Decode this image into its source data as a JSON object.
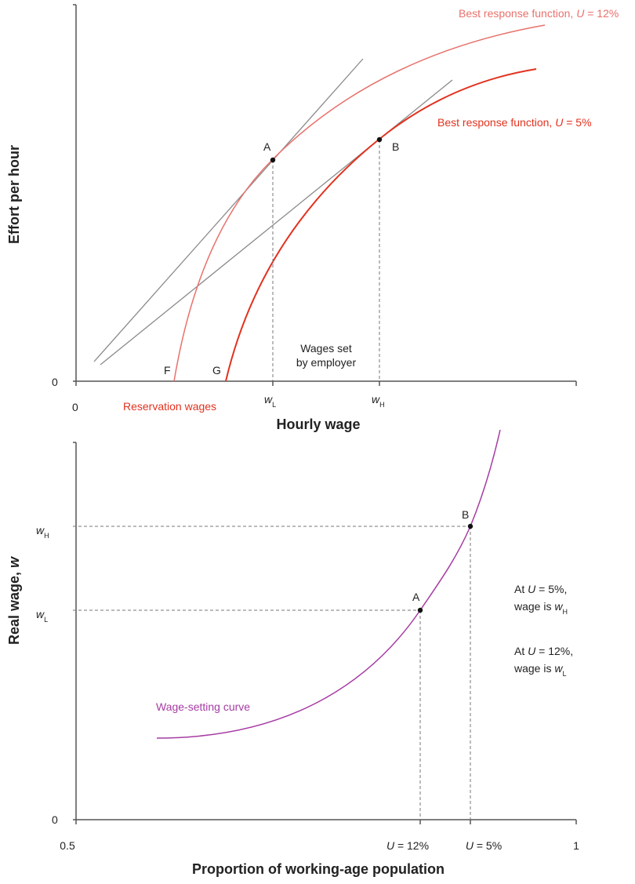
{
  "colors": {
    "u12": "#e8716c",
    "u5": "#e2321f",
    "wage_setting": "#a63ca4",
    "tangent": "#8a8a8a",
    "axis": "#555555"
  },
  "top_chart": {
    "y_label": "Effort per hour",
    "x_label": "Hourly wage",
    "y_origin": "0",
    "x_origin": "0",
    "curve_u12_label": {
      "prefix": "Best response function, ",
      "var": "U",
      "suffix": " = 12%"
    },
    "curve_u5_label": {
      "prefix": "Best response function, ",
      "var": "U",
      "suffix": " = 5%"
    },
    "point_a": "A",
    "point_b": "B",
    "point_f": "F",
    "point_g": "G",
    "reservation_label": "Reservation wages",
    "wages_set_line1": "Wages set",
    "wages_set_line2": "by employer",
    "wL": {
      "w": "w",
      "sub": "L"
    },
    "wH": {
      "w": "w",
      "sub": "H"
    }
  },
  "bottom_chart": {
    "y_label_prefix": "Real wage, ",
    "y_label_var": "w",
    "x_label": "Proportion of working-age population",
    "y_origin": "0",
    "x_min": "0.5",
    "x_max": "1",
    "tick_u12": {
      "var": "U",
      "suffix": " = 12%"
    },
    "tick_u5": {
      "var": "U",
      "suffix": " = 5%"
    },
    "wH": {
      "w": "w",
      "sub": "H"
    },
    "wL": {
      "w": "w",
      "sub": "L"
    },
    "point_a": "A",
    "point_b": "B",
    "curve_label": "Wage-setting curve",
    "note1": {
      "l1_prefix": "At ",
      "l1_var": "U",
      "l1_suffix": " = 5%,",
      "l2_prefix": "wage is ",
      "l2_w": "w",
      "l2_sub": "H"
    },
    "note2": {
      "l1_prefix": "At ",
      "l1_var": "U",
      "l1_suffix": " = 12%,",
      "l2_prefix": "wage is ",
      "l2_w": "w",
      "l2_sub": "L"
    }
  }
}
